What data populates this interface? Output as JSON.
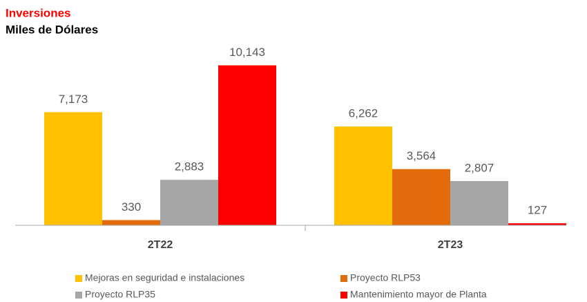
{
  "chart_data": {
    "type": "bar",
    "title": "Inversiones",
    "subtitle": "Miles de Dólares",
    "categories": [
      "2T22",
      "2T23"
    ],
    "series": [
      {
        "name": "Mejoras en seguridad e instalaciones",
        "color": "#ffc000",
        "values": [
          7173,
          6262
        ],
        "value_labels": [
          "7,173",
          "6,262"
        ]
      },
      {
        "name": "Proyecto RLP53",
        "color": "#e36c0a",
        "values": [
          330,
          3564
        ],
        "value_labels": [
          "330",
          "3,564"
        ]
      },
      {
        "name": "Proyecto RLP35",
        "color": "#a6a6a6",
        "values": [
          2883,
          2807
        ],
        "value_labels": [
          "2,883",
          "2,807"
        ]
      },
      {
        "name": "Mantenimiento mayor de Planta",
        "color": "#ff0000",
        "values": [
          10143,
          127
        ],
        "value_labels": [
          "10,143",
          "127"
        ]
      }
    ],
    "ylim": [
      0,
      11000
    ]
  }
}
